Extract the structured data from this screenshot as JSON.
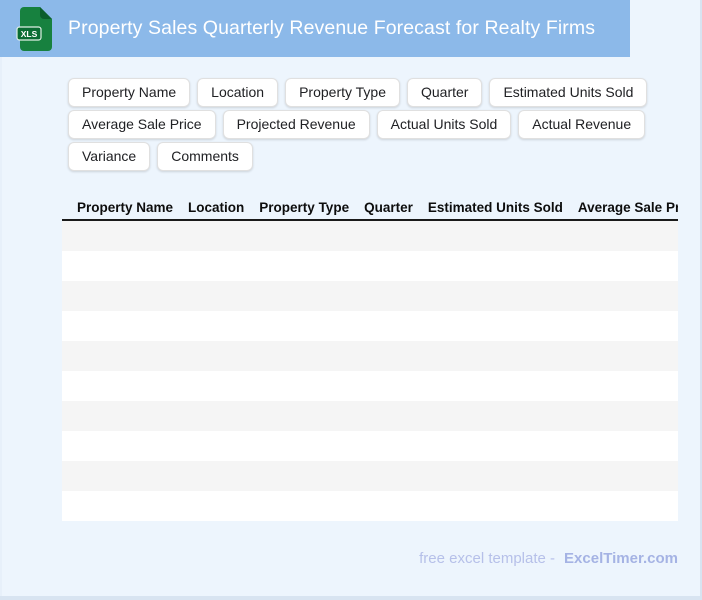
{
  "page": {
    "background": "#EDF5FD",
    "edge_color": "#D8E4F1"
  },
  "header": {
    "title": "Property Sales Quarterly Revenue Forecast for Realty Firms",
    "background": "#8CB9E9",
    "icon": {
      "name": "xls-file-icon",
      "label": "XLS",
      "body_color": "#17813F",
      "fold_color": "#0B5E2D",
      "badge_color": "#0A6C33"
    }
  },
  "chips": {
    "rows": [
      [
        "Property Name",
        "Location",
        "Property Type",
        "Quarter",
        "Estimated Units Sold"
      ],
      [
        "Average Sale Price",
        "Projected Revenue",
        "Actual Units Sold",
        "Actual Revenue"
      ],
      [
        "Variance",
        "Comments"
      ]
    ]
  },
  "table": {
    "columns": [
      "Property Name",
      "Location",
      "Property Type",
      "Quarter",
      "Estimated Units Sold",
      "Average Sale Price"
    ],
    "empty_row_count": 10,
    "stripe_color": "#F5F5F5"
  },
  "footer": {
    "text": "free excel template -",
    "brand": "ExcelTimer.com",
    "text_color": "#B6C0E9",
    "brand_color": "#A5B3E4"
  }
}
